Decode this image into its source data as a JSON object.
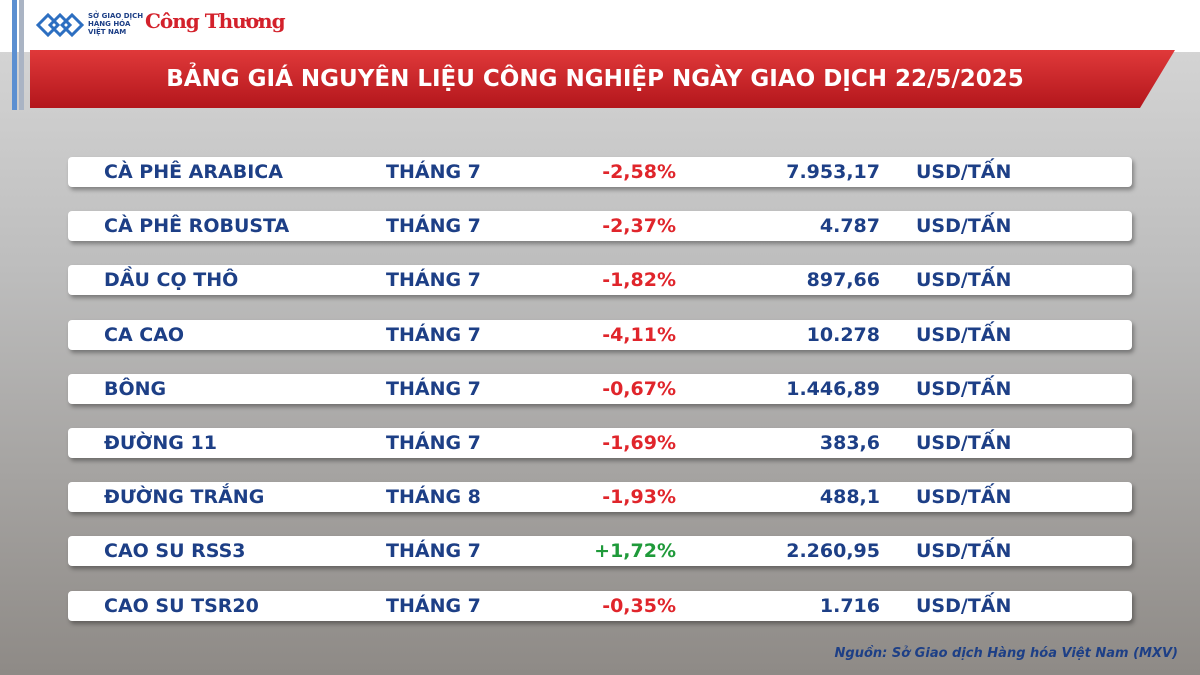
{
  "header": {
    "logo_lines": [
      "SỞ GIAO DỊCH",
      "HÀNG HÓA",
      "VIỆT NAM"
    ],
    "brand": "Công Thương",
    "title": "BẢNG GIÁ NGUYÊN LIỆU CÔNG NGHIỆP NGÀY GIAO DỊCH 22/5/2025"
  },
  "table": {
    "rows": [
      {
        "name": "CÀ PHÊ ARABICA",
        "month": "THÁNG 7",
        "change": "-2,58%",
        "price": "7.953,17",
        "unit": "USD/TẤN",
        "color": "#e0252b"
      },
      {
        "name": "CÀ PHÊ ROBUSTA",
        "month": "THÁNG 7",
        "change": "-2,37%",
        "price": "4.787",
        "unit": "USD/TẤN",
        "color": "#e0252b"
      },
      {
        "name": "DẦU CỌ THÔ",
        "month": "THÁNG 7",
        "change": "-1,82%",
        "price": "897,66",
        "unit": "USD/TẤN",
        "color": "#e0252b"
      },
      {
        "name": "CA CAO",
        "month": "THÁNG 7",
        "change": "-4,11%",
        "price": "10.278",
        "unit": "USD/TẤN",
        "color": "#e0252b"
      },
      {
        "name": "BÔNG",
        "month": "THÁNG 7",
        "change": "-0,67%",
        "price": "1.446,89",
        "unit": "USD/TẤN",
        "color": "#e0252b"
      },
      {
        "name": "ĐƯỜNG 11",
        "month": "THÁNG 7",
        "change": "-1,69%",
        "price": "383,6",
        "unit": "USD/TẤN",
        "color": "#e0252b"
      },
      {
        "name": "ĐƯỜNG TRẮNG",
        "month": "THÁNG 8",
        "change": "-1,93%",
        "price": "488,1",
        "unit": "USD/TẤN",
        "color": "#e0252b"
      },
      {
        "name": "CAO SU RSS3",
        "month": "THÁNG 7",
        "change": "+1,72%",
        "price": "2.260,95",
        "unit": "USD/TẤN",
        "color": "#1f9a3a"
      },
      {
        "name": "CAO SU TSR20",
        "month": "THÁNG 7",
        "change": "-0,35%",
        "price": "1.716",
        "unit": "USD/TẤN",
        "color": "#e0252b"
      }
    ]
  },
  "footer": {
    "source": "Nguồn: Sở Giao dịch Hàng hóa Việt Nam (MXV)"
  }
}
